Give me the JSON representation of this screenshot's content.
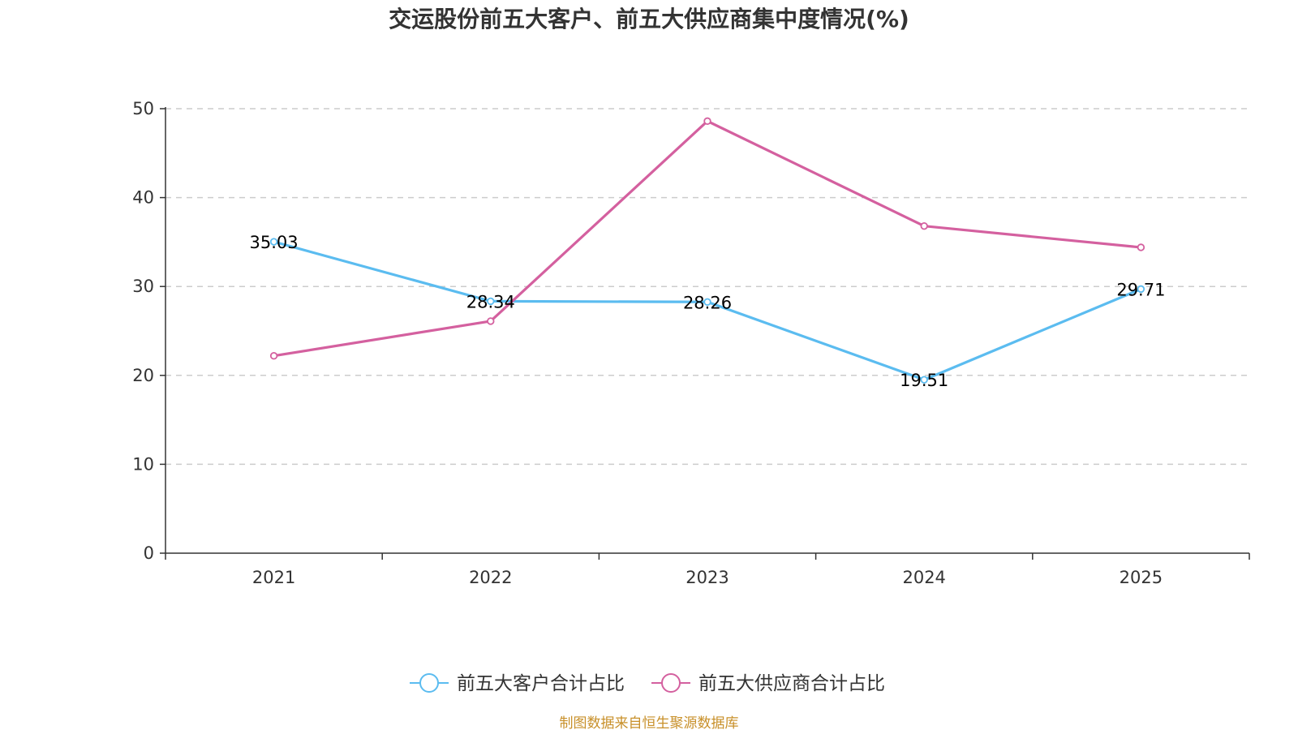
{
  "chart_data": {
    "type": "line",
    "title": "交运股份前五大客户、前五大供应商集中度情况(%)",
    "categories": [
      "2021",
      "2022",
      "2023",
      "2024",
      "2025"
    ],
    "ylim": [
      0,
      50
    ],
    "yticks": [
      "0",
      "10",
      "20",
      "30",
      "40",
      "50"
    ],
    "grid": "horizontal dashed",
    "legend_position": "bottom",
    "series": [
      {
        "name": "前五大客户合计占比",
        "color": "#5bbcf0",
        "values": [
          35.03,
          28.34,
          28.26,
          19.51,
          29.71
        ],
        "labels": [
          "35.03",
          "28.34",
          "28.26",
          "19.51",
          "29.71"
        ]
      },
      {
        "name": "前五大供应商合计占比",
        "color": "#d4609f",
        "values": [
          22.2,
          26.1,
          48.6,
          36.8,
          34.4
        ],
        "labels": []
      }
    ]
  },
  "source_note": "制图数据来自恒生聚源数据库"
}
